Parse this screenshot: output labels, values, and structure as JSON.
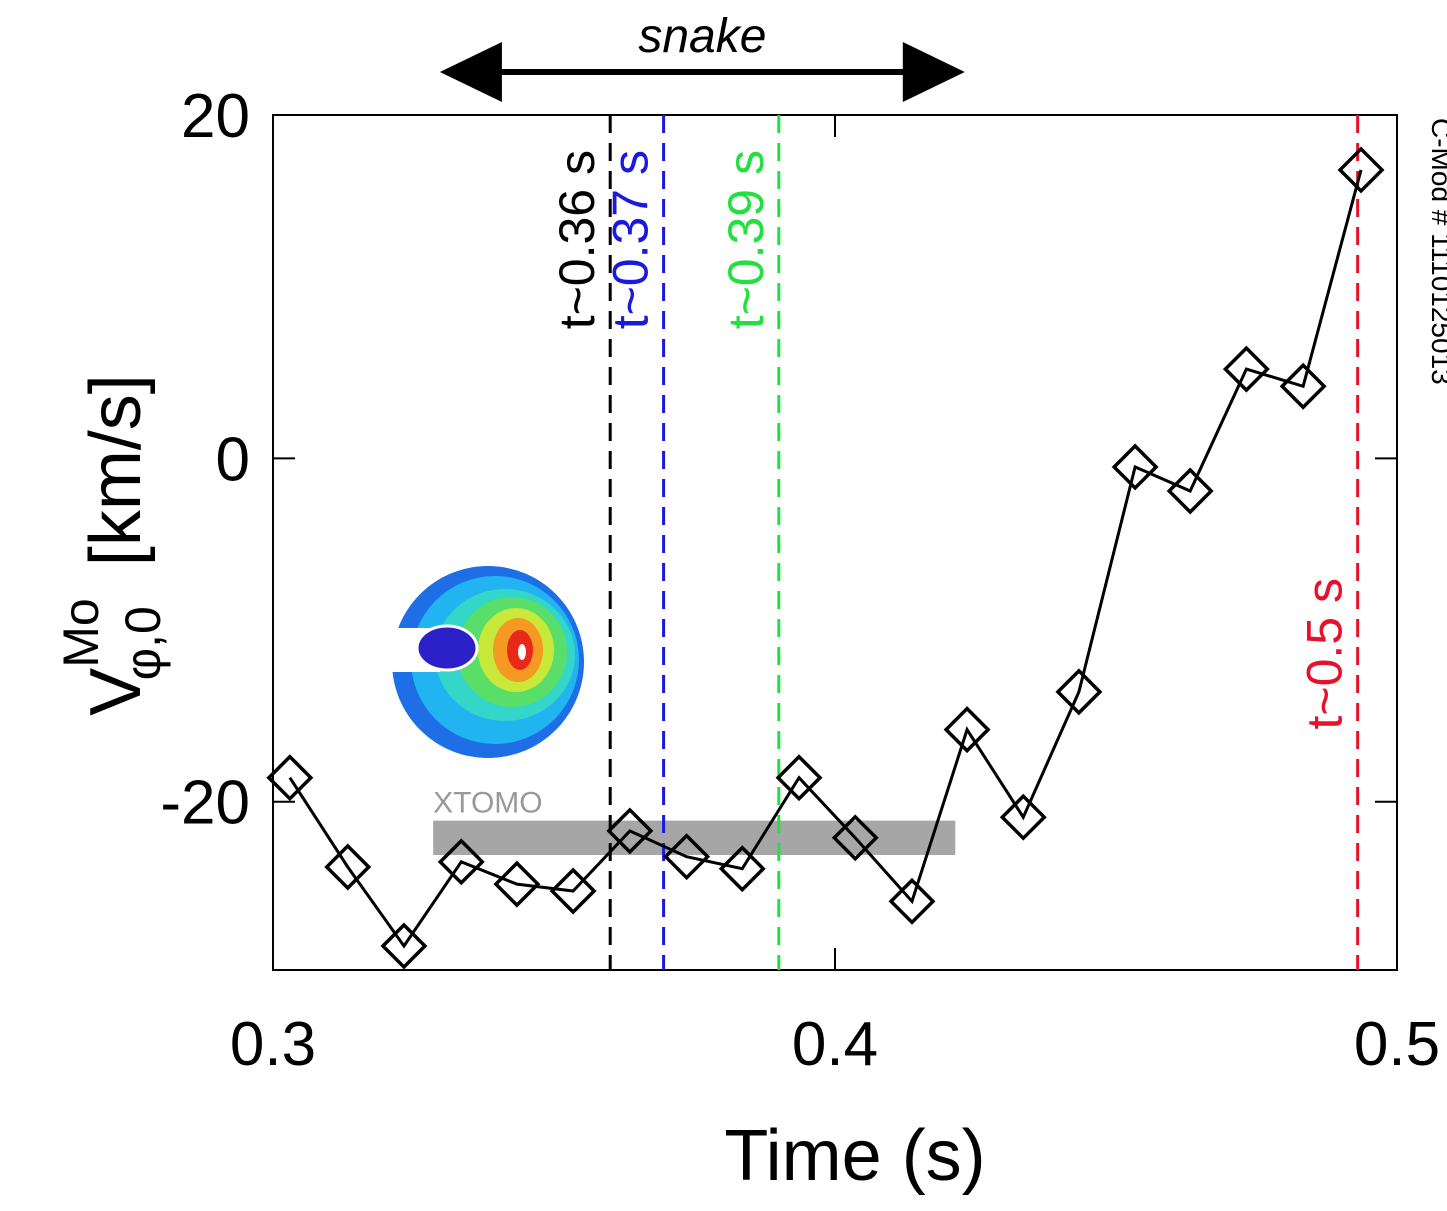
{
  "chart_data": {
    "type": "line",
    "x_label": "Time (s)",
    "y_label": {
      "main": "V",
      "sup": "Mo",
      "sub": "φ,0",
      "units": "[km/s]"
    },
    "side_label": "C-Mod # 1110125013",
    "x": [
      0.303,
      0.3133,
      0.3233,
      0.3335,
      0.3434,
      0.3534,
      0.3635,
      0.3736,
      0.3835,
      0.3936,
      0.4036,
      0.4137,
      0.4235,
      0.4335,
      0.4434,
      0.4534,
      0.4632,
      0.4732,
      0.4833,
      0.4936
    ],
    "series": [
      {
        "name": "V",
        "color": "#000000",
        "values": [
          -18.6,
          -23.8,
          -28.4,
          -23.5,
          -24.8,
          -25.2,
          -21.7,
          -23.2,
          -23.9,
          -18.6,
          -22.1,
          -25.8,
          -15.8,
          -20.9,
          -13.6,
          -0.5,
          -1.9,
          5.2,
          4.2,
          16.8
        ]
      }
    ],
    "xlim": [
      0.3,
      0.5
    ],
    "ylim": [
      -29.8,
      20
    ],
    "xticks": [
      0.3,
      0.4,
      0.5
    ],
    "yticks": [
      -20,
      0,
      20
    ],
    "vlines": [
      {
        "x": 0.36,
        "color": "#000000",
        "label": "t~0.36 s"
      },
      {
        "x": 0.3695,
        "color": "#1a1adc",
        "label": "t~0.37 s"
      },
      {
        "x": 0.39,
        "color": "#22e040",
        "label": "t~0.39 s"
      },
      {
        "x": 0.493,
        "color": "#e8102a",
        "label": "t~0.5 s"
      }
    ],
    "band": {
      "label": "XTOMO",
      "x0": 0.3285,
      "x1": 0.4214,
      "y0": -21.1,
      "y1": -23.1,
      "color": "#a6a6a6"
    },
    "arrow": {
      "label": "snake",
      "x0": 0.3297,
      "x1": 0.4231
    }
  }
}
